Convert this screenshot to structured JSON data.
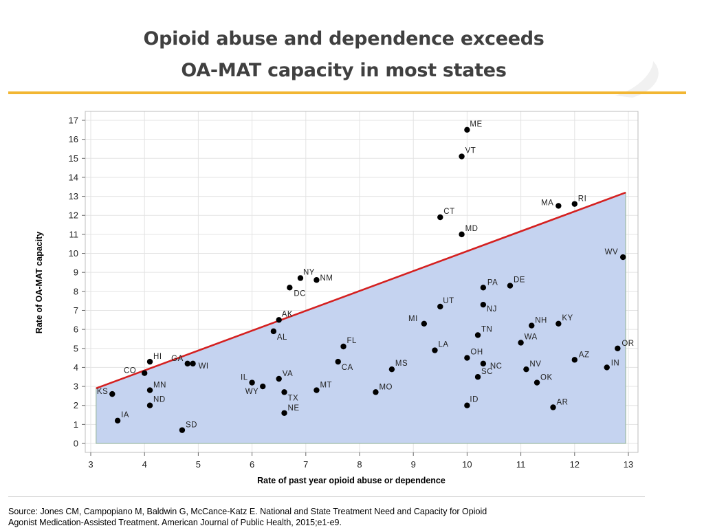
{
  "slide": {
    "title_line1": "Opioid abuse and dependence exceeds",
    "title_line2": "OA-MAT capacity in most states",
    "source_line1": "Source: Jones CM, Campopiano M, Baldwin G, McCance-Katz E. National and State Treatment Need and Capacity for Opioid",
    "source_line2": "Agonist Medication-Assisted Treatment. American Journal of Public Health, 2015;e1-e9.",
    "accent_color": "#f2b632"
  },
  "chart_data": {
    "type": "scatter",
    "title": "",
    "xlabel": "Rate of past year opioid abuse or dependence",
    "ylabel": "Rate of OA-MAT capacity",
    "xlim": [
      3,
      13
    ],
    "ylim": [
      0,
      17
    ],
    "xticks": [
      3,
      4,
      5,
      6,
      7,
      8,
      9,
      10,
      11,
      12,
      13
    ],
    "yticks": [
      0,
      1,
      2,
      3,
      4,
      5,
      6,
      7,
      8,
      9,
      10,
      11,
      12,
      13,
      14,
      15,
      16,
      17
    ],
    "grid": true,
    "fill_color": "#c5d3f0",
    "line_color": "#d42020",
    "point_color": "#000000",
    "reference_line": {
      "x": [
        3.1,
        12.95
      ],
      "y": [
        2.9,
        13.2
      ]
    },
    "points": [
      {
        "label": "ME",
        "x": 10.0,
        "y": 16.5
      },
      {
        "label": "VT",
        "x": 9.9,
        "y": 15.1
      },
      {
        "label": "MA",
        "x": 11.7,
        "y": 12.5
      },
      {
        "label": "RI",
        "x": 12.0,
        "y": 12.6
      },
      {
        "label": "CT",
        "x": 9.5,
        "y": 11.9
      },
      {
        "label": "MD",
        "x": 9.9,
        "y": 11.0
      },
      {
        "label": "WV",
        "x": 12.9,
        "y": 9.8
      },
      {
        "label": "NY",
        "x": 6.9,
        "y": 8.7
      },
      {
        "label": "NM",
        "x": 7.2,
        "y": 8.6
      },
      {
        "label": "DC",
        "x": 6.7,
        "y": 8.2
      },
      {
        "label": "PA",
        "x": 10.3,
        "y": 8.2
      },
      {
        "label": "DE",
        "x": 10.8,
        "y": 8.3
      },
      {
        "label": "UT",
        "x": 9.5,
        "y": 7.2
      },
      {
        "label": "NJ",
        "x": 10.3,
        "y": 7.3
      },
      {
        "label": "AK",
        "x": 6.5,
        "y": 6.5
      },
      {
        "label": "MI",
        "x": 9.2,
        "y": 6.3
      },
      {
        "label": "NH",
        "x": 11.2,
        "y": 6.2
      },
      {
        "label": "KY",
        "x": 11.7,
        "y": 6.3
      },
      {
        "label": "TN",
        "x": 10.2,
        "y": 5.7
      },
      {
        "label": "AL",
        "x": 6.4,
        "y": 5.9
      },
      {
        "label": "WA",
        "x": 11.0,
        "y": 5.3
      },
      {
        "label": "FL",
        "x": 7.7,
        "y": 5.1
      },
      {
        "label": "LA",
        "x": 9.4,
        "y": 4.9
      },
      {
        "label": "OR",
        "x": 12.8,
        "y": 5.0
      },
      {
        "label": "OH",
        "x": 10.0,
        "y": 4.5
      },
      {
        "label": "AZ",
        "x": 12.0,
        "y": 4.4
      },
      {
        "label": "HI",
        "x": 4.1,
        "y": 4.3
      },
      {
        "label": "GA",
        "x": 4.8,
        "y": 4.2
      },
      {
        "label": "WI",
        "x": 4.9,
        "y": 4.2
      },
      {
        "label": "CA",
        "x": 7.6,
        "y": 4.3
      },
      {
        "label": "NC",
        "x": 10.3,
        "y": 4.2
      },
      {
        "label": "NV",
        "x": 11.1,
        "y": 3.9
      },
      {
        "label": "IN",
        "x": 12.6,
        "y": 4.0
      },
      {
        "label": "MS",
        "x": 8.6,
        "y": 3.9
      },
      {
        "label": "CO",
        "x": 4.0,
        "y": 3.7
      },
      {
        "label": "SC",
        "x": 10.2,
        "y": 3.5
      },
      {
        "label": "VA",
        "x": 6.5,
        "y": 3.4
      },
      {
        "label": "OK",
        "x": 11.3,
        "y": 3.2
      },
      {
        "label": "IL",
        "x": 6.0,
        "y": 3.2
      },
      {
        "label": "WY",
        "x": 6.2,
        "y": 3.0
      },
      {
        "label": "MT",
        "x": 7.2,
        "y": 2.8
      },
      {
        "label": "MN",
        "x": 4.1,
        "y": 2.8
      },
      {
        "label": "KS",
        "x": 3.4,
        "y": 2.6
      },
      {
        "label": "TX",
        "x": 6.6,
        "y": 2.7
      },
      {
        "label": "MO",
        "x": 8.3,
        "y": 2.7
      },
      {
        "label": "ND",
        "x": 4.1,
        "y": 2.0
      },
      {
        "label": "ID",
        "x": 10.0,
        "y": 2.0
      },
      {
        "label": "AR",
        "x": 11.6,
        "y": 1.9
      },
      {
        "label": "NE",
        "x": 6.6,
        "y": 1.6
      },
      {
        "label": "IA",
        "x": 3.5,
        "y": 1.2
      },
      {
        "label": "SD",
        "x": 4.7,
        "y": 0.7
      }
    ]
  }
}
